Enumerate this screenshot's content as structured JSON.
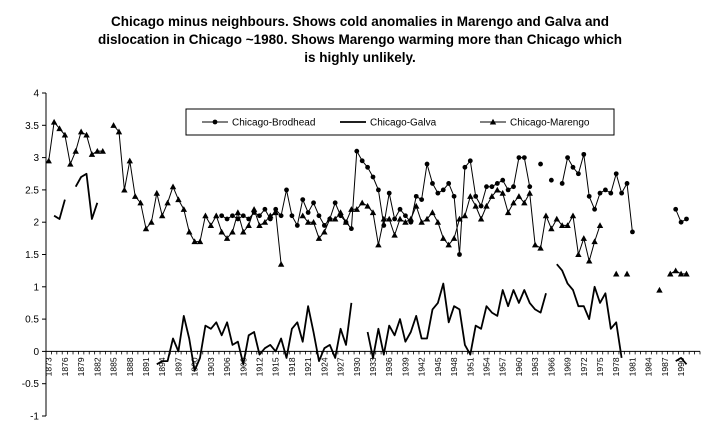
{
  "chart_data": {
    "type": "line",
    "title_lines": [
      "Chicago minus neighbours. Shows cold anomalies in Marengo and Galva and",
      "dislocation in Chicago ~1980.  Shows Marengo warming more than Chicago which",
      "is highly unlikely."
    ],
    "xlabel": "",
    "ylabel": "",
    "xlim": [
      1873,
      1993
    ],
    "ylim": [
      -1,
      4
    ],
    "yticks": [
      -1,
      -0.5,
      0,
      0.5,
      1,
      1.5,
      2,
      2.5,
      3,
      3.5,
      4
    ],
    "ytick_labels": [
      "-1",
      "-0.5",
      "0",
      "0.5",
      "1",
      "1.5",
      "2",
      "2.5",
      "3",
      "3.5",
      "4"
    ],
    "xtick_labels": [
      "1873",
      "1876",
      "1879",
      "1882",
      "1885",
      "1888",
      "1891",
      "1894",
      "1897",
      "1900",
      "1903",
      "1906",
      "1909",
      "1912",
      "1915",
      "1918",
      "1921",
      "1924",
      "1927",
      "1930",
      "1933",
      "1936",
      "1939",
      "1942",
      "1945",
      "1948",
      "1951",
      "1954",
      "1957",
      "1960",
      "1963",
      "1966",
      "1969",
      "1972",
      "1975",
      "1978",
      "1981",
      "1984",
      "1987",
      "1990"
    ],
    "grid": false,
    "legend_position": "top-center",
    "series": [
      {
        "name": "Chicago-Brodhead",
        "marker": "circle",
        "points": [
          [
            1905,
            2.1
          ],
          [
            1906,
            2.05
          ],
          [
            1907,
            2.1
          ],
          [
            1908,
            2.05
          ],
          [
            1909,
            2.1
          ],
          [
            1910,
            2.05
          ],
          [
            1911,
            2.15
          ],
          [
            1912,
            2.1
          ],
          [
            1913,
            2.2
          ],
          [
            1914,
            2.05
          ],
          [
            1915,
            2.2
          ],
          [
            1916,
            2.1
          ],
          [
            1917,
            2.5
          ],
          [
            1918,
            2.1
          ],
          [
            1919,
            1.95
          ],
          [
            1920,
            2.35
          ],
          [
            1921,
            2.15
          ],
          [
            1922,
            2.3
          ],
          [
            1923,
            2.1
          ],
          [
            1924,
            1.95
          ],
          [
            1925,
            2.05
          ],
          [
            1926,
            2.3
          ],
          [
            1927,
            2.1
          ],
          [
            1928,
            2.0
          ],
          [
            1929,
            1.9
          ],
          [
            1930,
            3.1
          ],
          [
            1931,
            2.95
          ],
          [
            1932,
            2.85
          ],
          [
            1933,
            2.7
          ],
          [
            1934,
            2.5
          ],
          [
            1935,
            1.95
          ],
          [
            1936,
            2.45
          ],
          [
            1937,
            2.05
          ],
          [
            1938,
            2.2
          ],
          [
            1939,
            2.1
          ],
          [
            1940,
            2.0
          ],
          [
            1941,
            2.4
          ],
          [
            1942,
            2.35
          ],
          [
            1943,
            2.9
          ],
          [
            1944,
            2.6
          ],
          [
            1945,
            2.45
          ],
          [
            1946,
            2.5
          ],
          [
            1947,
            2.6
          ],
          [
            1948,
            2.4
          ],
          [
            1949,
            1.5
          ],
          [
            1950,
            2.85
          ],
          [
            1951,
            2.95
          ],
          [
            1952,
            2.4
          ],
          [
            1953,
            2.25
          ],
          [
            1954,
            2.55
          ],
          [
            1955,
            2.55
          ],
          [
            1956,
            2.6
          ],
          [
            1957,
            2.65
          ],
          [
            1958,
            2.5
          ],
          [
            1959,
            2.55
          ],
          [
            1960,
            3.0
          ],
          [
            1961,
            3.0
          ],
          [
            1962,
            2.55
          ],
          [
            1963,
            null
          ],
          [
            1964,
            2.9
          ],
          [
            1965,
            null
          ],
          [
            1966,
            2.65
          ],
          [
            1967,
            null
          ],
          [
            1968,
            2.6
          ],
          [
            1969,
            3.0
          ],
          [
            1970,
            2.85
          ],
          [
            1971,
            2.75
          ],
          [
            1972,
            3.05
          ],
          [
            1973,
            2.4
          ],
          [
            1974,
            2.2
          ],
          [
            1975,
            2.45
          ],
          [
            1976,
            2.5
          ],
          [
            1977,
            2.45
          ],
          [
            1978,
            2.75
          ],
          [
            1979,
            2.45
          ],
          [
            1980,
            2.6
          ],
          [
            1981,
            1.85
          ],
          [
            1982,
            null
          ],
          [
            1989,
            2.2
          ],
          [
            1990,
            2.0
          ],
          [
            1991,
            2.05
          ]
        ]
      },
      {
        "name": "Chicago-Galva",
        "marker": "none",
        "points": [
          [
            1874,
            2.1
          ],
          [
            1875,
            2.05
          ],
          [
            1876,
            2.35
          ],
          [
            1877,
            null
          ],
          [
            1878,
            2.55
          ],
          [
            1879,
            2.7
          ],
          [
            1880,
            2.75
          ],
          [
            1881,
            2.05
          ],
          [
            1882,
            2.3
          ],
          [
            1883,
            null
          ],
          [
            1893,
            -0.2
          ],
          [
            1894,
            -0.15
          ],
          [
            1895,
            -0.15
          ],
          [
            1896,
            0.2
          ],
          [
            1897,
            0.0
          ],
          [
            1898,
            0.55
          ],
          [
            1899,
            0.2
          ],
          [
            1900,
            -0.3
          ],
          [
            1901,
            -0.1
          ],
          [
            1902,
            0.4
          ],
          [
            1903,
            0.35
          ],
          [
            1904,
            0.45
          ],
          [
            1905,
            0.25
          ],
          [
            1906,
            0.45
          ],
          [
            1907,
            0.1
          ],
          [
            1908,
            0.15
          ],
          [
            1909,
            -0.2
          ],
          [
            1910,
            0.25
          ],
          [
            1911,
            0.3
          ],
          [
            1912,
            -0.05
          ],
          [
            1913,
            0.05
          ],
          [
            1914,
            0.1
          ],
          [
            1915,
            0.0
          ],
          [
            1916,
            0.2
          ],
          [
            1917,
            -0.1
          ],
          [
            1918,
            0.35
          ],
          [
            1919,
            0.45
          ],
          [
            1920,
            0.15
          ],
          [
            1921,
            0.7
          ],
          [
            1922,
            0.3
          ],
          [
            1923,
            -0.15
          ],
          [
            1924,
            0.05
          ],
          [
            1925,
            0.1
          ],
          [
            1926,
            -0.1
          ],
          [
            1927,
            0.35
          ],
          [
            1928,
            0.1
          ],
          [
            1929,
            0.75
          ],
          [
            1930,
            null
          ],
          [
            1932,
            0.3
          ],
          [
            1933,
            -0.1
          ],
          [
            1934,
            0.35
          ],
          [
            1935,
            -0.05
          ],
          [
            1936,
            0.4
          ],
          [
            1937,
            0.25
          ],
          [
            1938,
            0.5
          ],
          [
            1939,
            0.15
          ],
          [
            1940,
            0.3
          ],
          [
            1941,
            0.55
          ],
          [
            1942,
            0.2
          ],
          [
            1943,
            0.2
          ],
          [
            1944,
            0.65
          ],
          [
            1945,
            0.75
          ],
          [
            1946,
            1.05
          ],
          [
            1947,
            0.45
          ],
          [
            1948,
            0.7
          ],
          [
            1949,
            0.65
          ],
          [
            1950,
            0.1
          ],
          [
            1951,
            -0.05
          ],
          [
            1952,
            0.4
          ],
          [
            1953,
            0.35
          ],
          [
            1954,
            0.7
          ],
          [
            1955,
            0.6
          ],
          [
            1956,
            0.55
          ],
          [
            1957,
            0.95
          ],
          [
            1958,
            0.7
          ],
          [
            1959,
            0.95
          ],
          [
            1960,
            0.75
          ],
          [
            1961,
            0.95
          ],
          [
            1962,
            0.75
          ],
          [
            1963,
            0.65
          ],
          [
            1964,
            0.6
          ],
          [
            1965,
            0.9
          ],
          [
            1966,
            null
          ],
          [
            1967,
            1.35
          ],
          [
            1968,
            1.25
          ],
          [
            1969,
            1.05
          ],
          [
            1970,
            0.95
          ],
          [
            1971,
            0.7
          ],
          [
            1972,
            0.7
          ],
          [
            1973,
            0.5
          ],
          [
            1974,
            1.0
          ],
          [
            1975,
            0.75
          ],
          [
            1976,
            0.9
          ],
          [
            1977,
            0.35
          ],
          [
            1978,
            0.45
          ],
          [
            1979,
            -0.1
          ],
          [
            1980,
            null
          ],
          [
            1989,
            -0.15
          ],
          [
            1990,
            -0.1
          ],
          [
            1991,
            -0.2
          ]
        ]
      },
      {
        "name": "Chicago-Marengo",
        "marker": "triangle",
        "points": [
          [
            1873,
            2.95
          ],
          [
            1874,
            3.55
          ],
          [
            1875,
            3.45
          ],
          [
            1876,
            3.35
          ],
          [
            1877,
            2.9
          ],
          [
            1878,
            3.1
          ],
          [
            1879,
            3.4
          ],
          [
            1880,
            3.35
          ],
          [
            1881,
            3.05
          ],
          [
            1882,
            3.1
          ],
          [
            1883,
            3.1
          ],
          [
            1884,
            null
          ],
          [
            1885,
            3.5
          ],
          [
            1886,
            3.4
          ],
          [
            1887,
            2.5
          ],
          [
            1888,
            2.95
          ],
          [
            1889,
            2.4
          ],
          [
            1890,
            2.3
          ],
          [
            1891,
            1.9
          ],
          [
            1892,
            2.0
          ],
          [
            1893,
            2.45
          ],
          [
            1894,
            2.1
          ],
          [
            1895,
            2.3
          ],
          [
            1896,
            2.55
          ],
          [
            1897,
            2.35
          ],
          [
            1898,
            2.2
          ],
          [
            1899,
            1.85
          ],
          [
            1900,
            1.7
          ],
          [
            1901,
            1.7
          ],
          [
            1902,
            2.1
          ],
          [
            1903,
            1.95
          ],
          [
            1904,
            2.1
          ],
          [
            1905,
            1.85
          ],
          [
            1906,
            1.75
          ],
          [
            1907,
            1.85
          ],
          [
            1908,
            2.15
          ],
          [
            1909,
            1.85
          ],
          [
            1910,
            1.95
          ],
          [
            1911,
            2.2
          ],
          [
            1912,
            1.95
          ],
          [
            1913,
            2.0
          ],
          [
            1914,
            2.1
          ],
          [
            1915,
            2.15
          ],
          [
            1916,
            1.35
          ],
          [
            1917,
            null
          ],
          [
            1920,
            2.1
          ],
          [
            1921,
            2.0
          ],
          [
            1922,
            2.0
          ],
          [
            1923,
            1.75
          ],
          [
            1924,
            1.85
          ],
          [
            1925,
            2.05
          ],
          [
            1926,
            2.05
          ],
          [
            1927,
            2.15
          ],
          [
            1928,
            2.0
          ],
          [
            1929,
            2.2
          ],
          [
            1930,
            2.2
          ],
          [
            1931,
            2.3
          ],
          [
            1932,
            2.25
          ],
          [
            1933,
            2.15
          ],
          [
            1934,
            1.65
          ],
          [
            1935,
            2.05
          ],
          [
            1936,
            2.05
          ],
          [
            1937,
            1.8
          ],
          [
            1938,
            2.05
          ],
          [
            1939,
            2.0
          ],
          [
            1940,
            2.05
          ],
          [
            1941,
            2.25
          ],
          [
            1942,
            2.0
          ],
          [
            1943,
            2.05
          ],
          [
            1944,
            2.15
          ],
          [
            1945,
            2.0
          ],
          [
            1946,
            1.75
          ],
          [
            1947,
            1.65
          ],
          [
            1948,
            1.75
          ],
          [
            1949,
            2.05
          ],
          [
            1950,
            2.1
          ],
          [
            1951,
            2.4
          ],
          [
            1952,
            2.25
          ],
          [
            1953,
            2.05
          ],
          [
            1954,
            2.25
          ],
          [
            1955,
            2.4
          ],
          [
            1956,
            2.5
          ],
          [
            1957,
            2.45
          ],
          [
            1958,
            2.15
          ],
          [
            1959,
            2.3
          ],
          [
            1960,
            2.4
          ],
          [
            1961,
            2.3
          ],
          [
            1962,
            2.45
          ],
          [
            1963,
            1.65
          ],
          [
            1964,
            1.6
          ],
          [
            1965,
            2.1
          ],
          [
            1966,
            1.9
          ],
          [
            1967,
            2.05
          ],
          [
            1968,
            1.95
          ],
          [
            1969,
            1.95
          ],
          [
            1970,
            2.1
          ],
          [
            1971,
            1.5
          ],
          [
            1972,
            1.75
          ],
          [
            1973,
            1.4
          ],
          [
            1974,
            1.7
          ],
          [
            1975,
            1.95
          ],
          [
            1976,
            null
          ],
          [
            1978,
            1.2
          ],
          [
            1979,
            null
          ],
          [
            1980,
            1.2
          ],
          [
            1981,
            null
          ],
          [
            1986,
            0.95
          ],
          [
            1987,
            null
          ],
          [
            1988,
            1.2
          ],
          [
            1989,
            1.25
          ],
          [
            1990,
            1.2
          ],
          [
            1991,
            1.2
          ]
        ]
      }
    ]
  }
}
